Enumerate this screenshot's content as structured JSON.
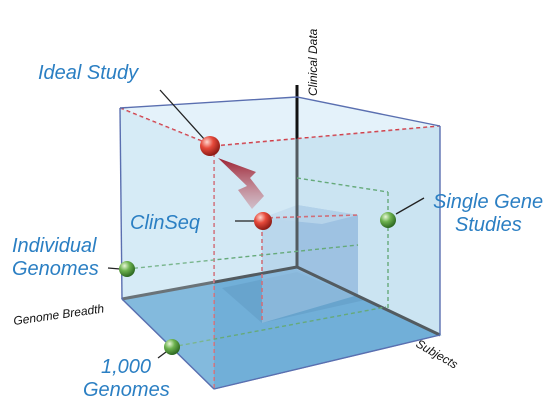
{
  "axes": {
    "vertical": "Clinical Data",
    "left": "Genome Breadth",
    "right": "Subjects"
  },
  "labels": {
    "ideal_study": "Ideal Study",
    "clinseq": "ClinSeq",
    "single_gene_line1": "Single Gene",
    "single_gene_line2": "Studies",
    "individual_line1": "Individual",
    "individual_line2": "Genomes",
    "thousand_line1": "1,000",
    "thousand_line2": "Genomes"
  },
  "colors": {
    "cube_face": "#cfe6f3",
    "cube_floor": "#3d8fc7",
    "cube_edge": "#5a6fb0",
    "red_dashed": "#d0303a",
    "green_dashed": "#2e8a3a",
    "label_blue": "#2b7fc3",
    "red_point": "#e0382e",
    "green_point": "#5fa84a",
    "arrow": "#a8323e"
  }
}
